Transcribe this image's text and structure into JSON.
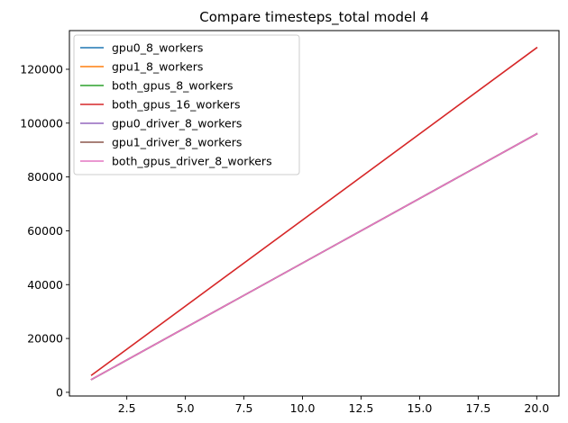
{
  "chart_data": {
    "type": "line",
    "title": "Compare timesteps_total model 4",
    "xlabel": "",
    "ylabel": "",
    "xlim": [
      0.05,
      20.95
    ],
    "ylim": [
      -1370,
      134370
    ],
    "xticks": [
      2.5,
      5.0,
      7.5,
      10.0,
      12.5,
      15.0,
      17.5,
      20.0
    ],
    "xtick_labels": [
      "2.5",
      "5.0",
      "7.5",
      "10.0",
      "12.5",
      "15.0",
      "17.5",
      "20.0"
    ],
    "yticks": [
      0,
      20000,
      40000,
      60000,
      80000,
      100000,
      120000
    ],
    "ytick_labels": [
      "0",
      "20000",
      "40000",
      "60000",
      "80000",
      "100000",
      "120000"
    ],
    "grid": false,
    "legend_position": "top-left",
    "series": [
      {
        "name": "gpu0_8_workers",
        "color": "#1f77b4",
        "x": [
          1,
          20
        ],
        "y": [
          4800,
          96000
        ]
      },
      {
        "name": "gpu1_8_workers",
        "color": "#ff7f0e",
        "x": [
          1,
          20
        ],
        "y": [
          4800,
          96000
        ]
      },
      {
        "name": "both_gpus_8_workers",
        "color": "#2ca02c",
        "x": [
          1,
          20
        ],
        "y": [
          4800,
          96000
        ]
      },
      {
        "name": "both_gpus_16_workers",
        "color": "#d62728",
        "x": [
          1,
          20
        ],
        "y": [
          6400,
          128000
        ]
      },
      {
        "name": "gpu0_driver_8_workers",
        "color": "#9467bd",
        "x": [
          1,
          20
        ],
        "y": [
          4800,
          96000
        ]
      },
      {
        "name": "gpu1_driver_8_workers",
        "color": "#8c564b",
        "x": [
          1,
          20
        ],
        "y": [
          4800,
          96000
        ]
      },
      {
        "name": "both_gpus_driver_8_workers",
        "color": "#e377c2",
        "x": [
          1,
          20
        ],
        "y": [
          4800,
          96000
        ]
      }
    ]
  }
}
